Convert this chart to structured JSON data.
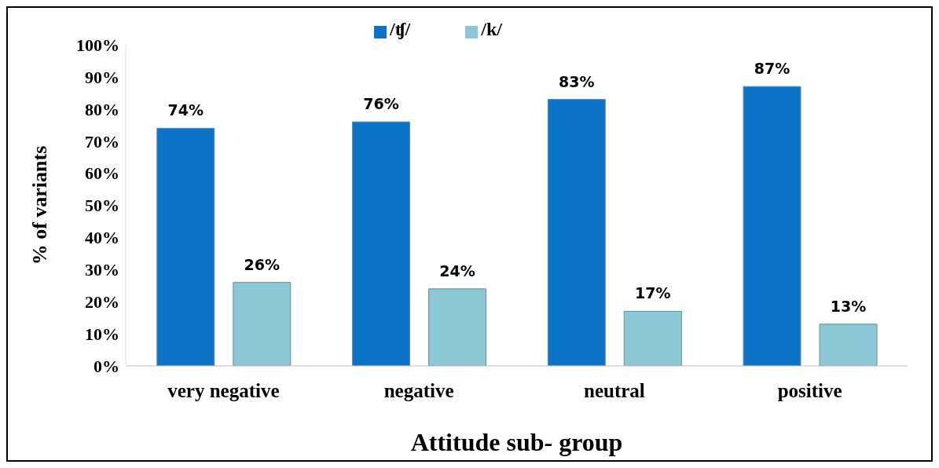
{
  "chart_data": {
    "type": "bar",
    "xlabel": "Attitude sub- group",
    "ylabel": "% of variants",
    "categories": [
      "very negative",
      "negative",
      "neutral",
      "positive"
    ],
    "series": [
      {
        "name": "/ʧ/",
        "color": "#0b74c8",
        "values": [
          74,
          76,
          83,
          87
        ],
        "value_labels": [
          "74%",
          "76%",
          "83%",
          "87%"
        ]
      },
      {
        "name": "/k/",
        "color": "#8cc7d6",
        "values": [
          26,
          24,
          17,
          13
        ],
        "value_labels": [
          "26%",
          "24%",
          "17%",
          "13%"
        ]
      }
    ],
    "ylim": [
      0,
      100
    ],
    "yticks": [
      {
        "value": 0,
        "label": "0%"
      },
      {
        "value": 10,
        "label": "10%"
      },
      {
        "value": 20,
        "label": "20%"
      },
      {
        "value": 30,
        "label": "30%"
      },
      {
        "value": 40,
        "label": "40%"
      },
      {
        "value": 50,
        "label": "50%"
      },
      {
        "value": 60,
        "label": "60%"
      },
      {
        "value": 70,
        "label": "70%"
      },
      {
        "value": 80,
        "label": "80%"
      },
      {
        "value": 90,
        "label": "90%"
      },
      {
        "value": 100,
        "label": "100%"
      }
    ],
    "grid": false,
    "legend": "top"
  }
}
